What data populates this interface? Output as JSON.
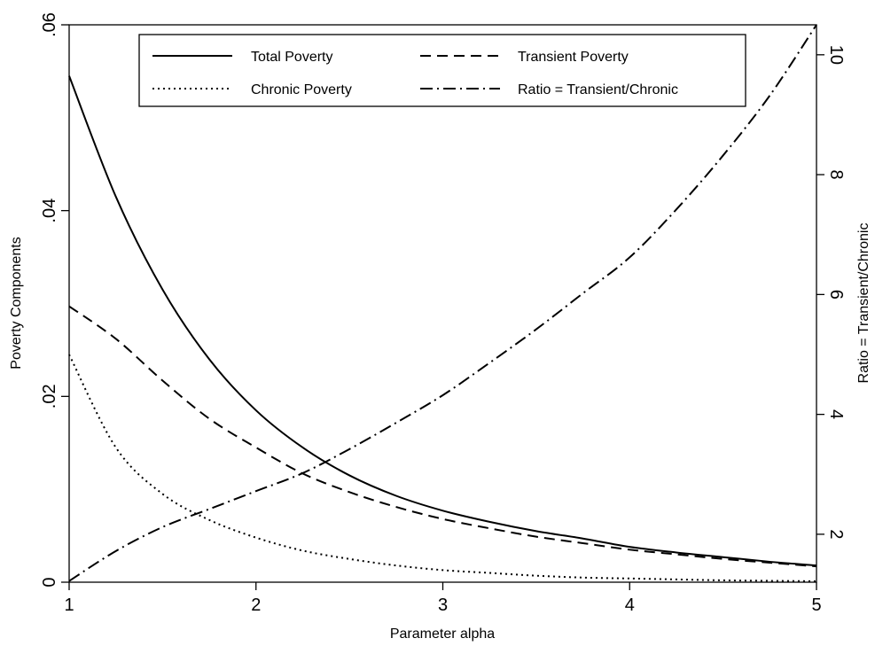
{
  "chart_data": {
    "type": "line",
    "xlabel": "Parameter alpha",
    "ylabel_left": "Poverty Components",
    "ylabel_right": "Ratio = Transient/Chronic",
    "xlim": [
      1,
      5
    ],
    "ylim_left": [
      0,
      0.06
    ],
    "ylim_right": [
      1.2,
      10.5
    ],
    "x_ticks": [
      1,
      2,
      3,
      4,
      5
    ],
    "x_tick_labels": [
      "1",
      "2",
      "3",
      "4",
      "5"
    ],
    "y_left_ticks": [
      0,
      0.02,
      0.04,
      0.06
    ],
    "y_left_tick_labels": [
      "0",
      ".02",
      ".04",
      ".06"
    ],
    "y_right_ticks": [
      2,
      4,
      6,
      8,
      10
    ],
    "y_right_tick_labels": [
      "2",
      "4",
      "6",
      "8",
      "10"
    ],
    "grid": false,
    "legend_position": "top",
    "x": [
      1,
      1.25,
      1.5,
      1.75,
      2,
      2.25,
      2.5,
      2.75,
      3,
      3.25,
      3.5,
      3.75,
      4,
      4.25,
      4.5,
      4.75,
      5
    ],
    "series": [
      {
        "name": "Total Poverty",
        "axis": "left",
        "style": "solid",
        "values": [
          0.0545,
          0.0415,
          0.0315,
          0.024,
          0.0185,
          0.0145,
          0.0115,
          0.0093,
          0.0077,
          0.0065,
          0.0055,
          0.0047,
          0.0038,
          0.0032,
          0.0027,
          0.0022,
          0.0018
        ]
      },
      {
        "name": "Transient Poverty",
        "axis": "left",
        "style": "dashed",
        "values": [
          0.0297,
          0.0262,
          0.0217,
          0.0176,
          0.0145,
          0.0117,
          0.0097,
          0.0081,
          0.0068,
          0.0058,
          0.0049,
          0.0042,
          0.0035,
          0.003,
          0.0025,
          0.0021,
          0.0017
        ]
      },
      {
        "name": "Chronic Poverty",
        "axis": "left",
        "style": "dotted",
        "values": [
          0.0245,
          0.0145,
          0.0095,
          0.0067,
          0.0048,
          0.0034,
          0.0025,
          0.0018,
          0.0013,
          0.001,
          0.0007,
          0.0005,
          0.0004,
          0.0003,
          0.0002,
          0.00015,
          0.0001
        ]
      },
      {
        "name": "Ratio = Transient/Chronic",
        "axis": "right",
        "style": "dashdot",
        "values": [
          1.22,
          1.72,
          2.12,
          2.42,
          2.72,
          3.02,
          3.42,
          3.86,
          4.32,
          4.86,
          5.42,
          6.02,
          6.62,
          7.42,
          8.32,
          9.32,
          10.5
        ]
      }
    ]
  }
}
